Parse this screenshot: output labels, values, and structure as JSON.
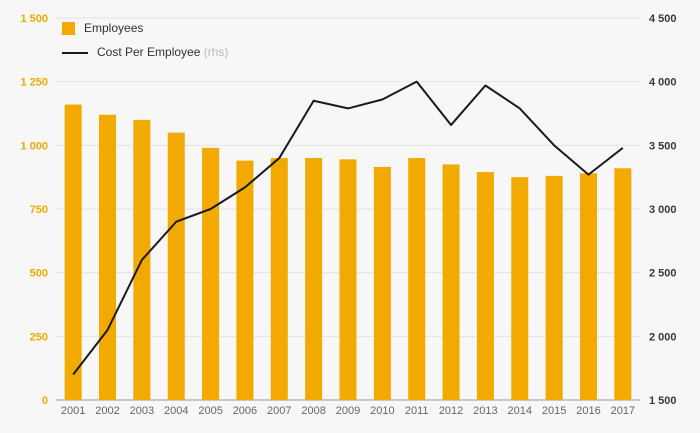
{
  "chart_data": {
    "type": "bar+line",
    "title": "",
    "categories": [
      "2001",
      "2002",
      "2003",
      "2004",
      "2005",
      "2006",
      "2007",
      "2008",
      "2009",
      "2010",
      "2011",
      "2012",
      "2013",
      "2014",
      "2015",
      "2016",
      "2017"
    ],
    "series": [
      {
        "name": "Employees",
        "type": "bar",
        "axis": "left",
        "color": "#F2A900",
        "values": [
          1160,
          1120,
          1100,
          1050,
          990,
          940,
          950,
          950,
          945,
          915,
          950,
          925,
          895,
          875,
          880,
          890,
          910
        ]
      },
      {
        "name": "Cost Per Employee",
        "type": "line",
        "axis": "right",
        "color": "#1a1a1a",
        "values": [
          1700,
          2050,
          2600,
          2900,
          3000,
          3170,
          3400,
          3850,
          3790,
          3860,
          4000,
          3660,
          3970,
          3790,
          3500,
          3270,
          3480
        ]
      }
    ],
    "left_axis": {
      "min": 0,
      "max": 1500,
      "color": "#F2A900",
      "tick_labels": [
        "0",
        "250",
        "500",
        "750",
        "1 000",
        "1 250",
        "1 500"
      ]
    },
    "right_axis": {
      "min": 1500,
      "max": 4500,
      "color": "#3a3a3a",
      "tick_labels": [
        "1 500",
        "2 000",
        "2 500",
        "3 000",
        "3 500",
        "4 000",
        "4 500"
      ]
    },
    "x_axis": {
      "color": "#666666"
    },
    "grid": true,
    "grid_color": "#e3e3e3",
    "baseline_color": "#9a9a9a",
    "background": "#f7f7f7",
    "legend_position": "top-left",
    "legend": [
      {
        "label": "Employees",
        "suffix": "",
        "type": "swatch",
        "color": "#F2A900"
      },
      {
        "label": "Cost Per Employee",
        "suffix": " (rhs)",
        "type": "line",
        "color": "#1a1a1a"
      }
    ]
  }
}
